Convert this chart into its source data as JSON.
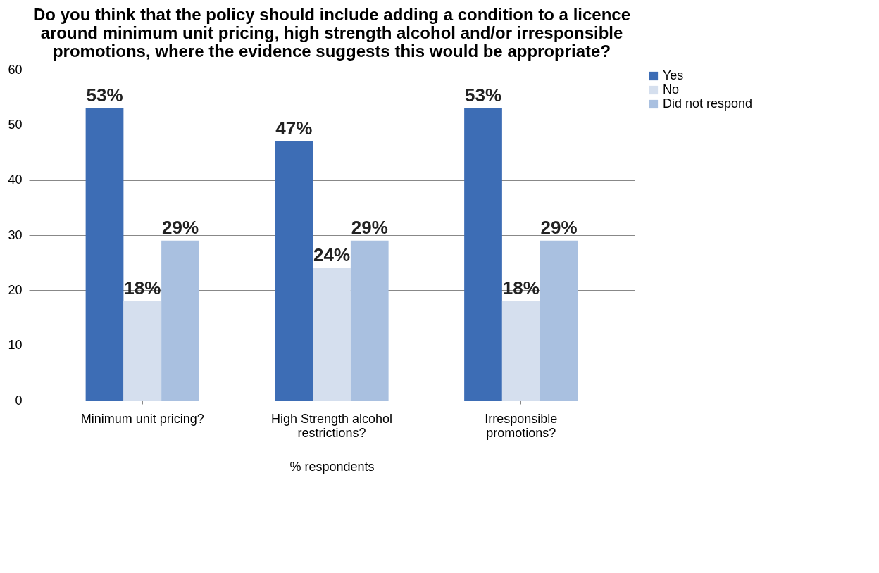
{
  "chart_data": {
    "type": "bar",
    "title": [
      "Do you think that the policy should include adding a condition to a licence",
      "around minimum unit pricing, high strength alcohol and/or irresponsible",
      "promotions, where the evidence suggests this would be appropriate?"
    ],
    "categories": [
      "Minimum unit pricing?",
      "High Strength alcohol restrictions?",
      "Irresponsible promotions?"
    ],
    "xlabel": "% respondents",
    "series": [
      {
        "name": "Yes",
        "color": "#3d6db5",
        "values": [
          53,
          47,
          53
        ],
        "value_labels": [
          "53%",
          "47%",
          "53%"
        ]
      },
      {
        "name": "No",
        "color": "#d5dfee",
        "values": [
          18,
          24,
          18
        ],
        "value_labels": [
          "18%",
          "24%",
          "18%"
        ]
      },
      {
        "name": "Did not respond",
        "color": "#a9c0e0",
        "values": [
          29,
          29,
          29
        ],
        "value_labels": [
          "29%",
          "29%",
          "29%"
        ]
      }
    ],
    "ylim": [
      0,
      60
    ],
    "yticks": [
      0,
      10,
      20,
      30,
      40,
      50,
      60
    ],
    "grid": "y",
    "legend": "right"
  }
}
